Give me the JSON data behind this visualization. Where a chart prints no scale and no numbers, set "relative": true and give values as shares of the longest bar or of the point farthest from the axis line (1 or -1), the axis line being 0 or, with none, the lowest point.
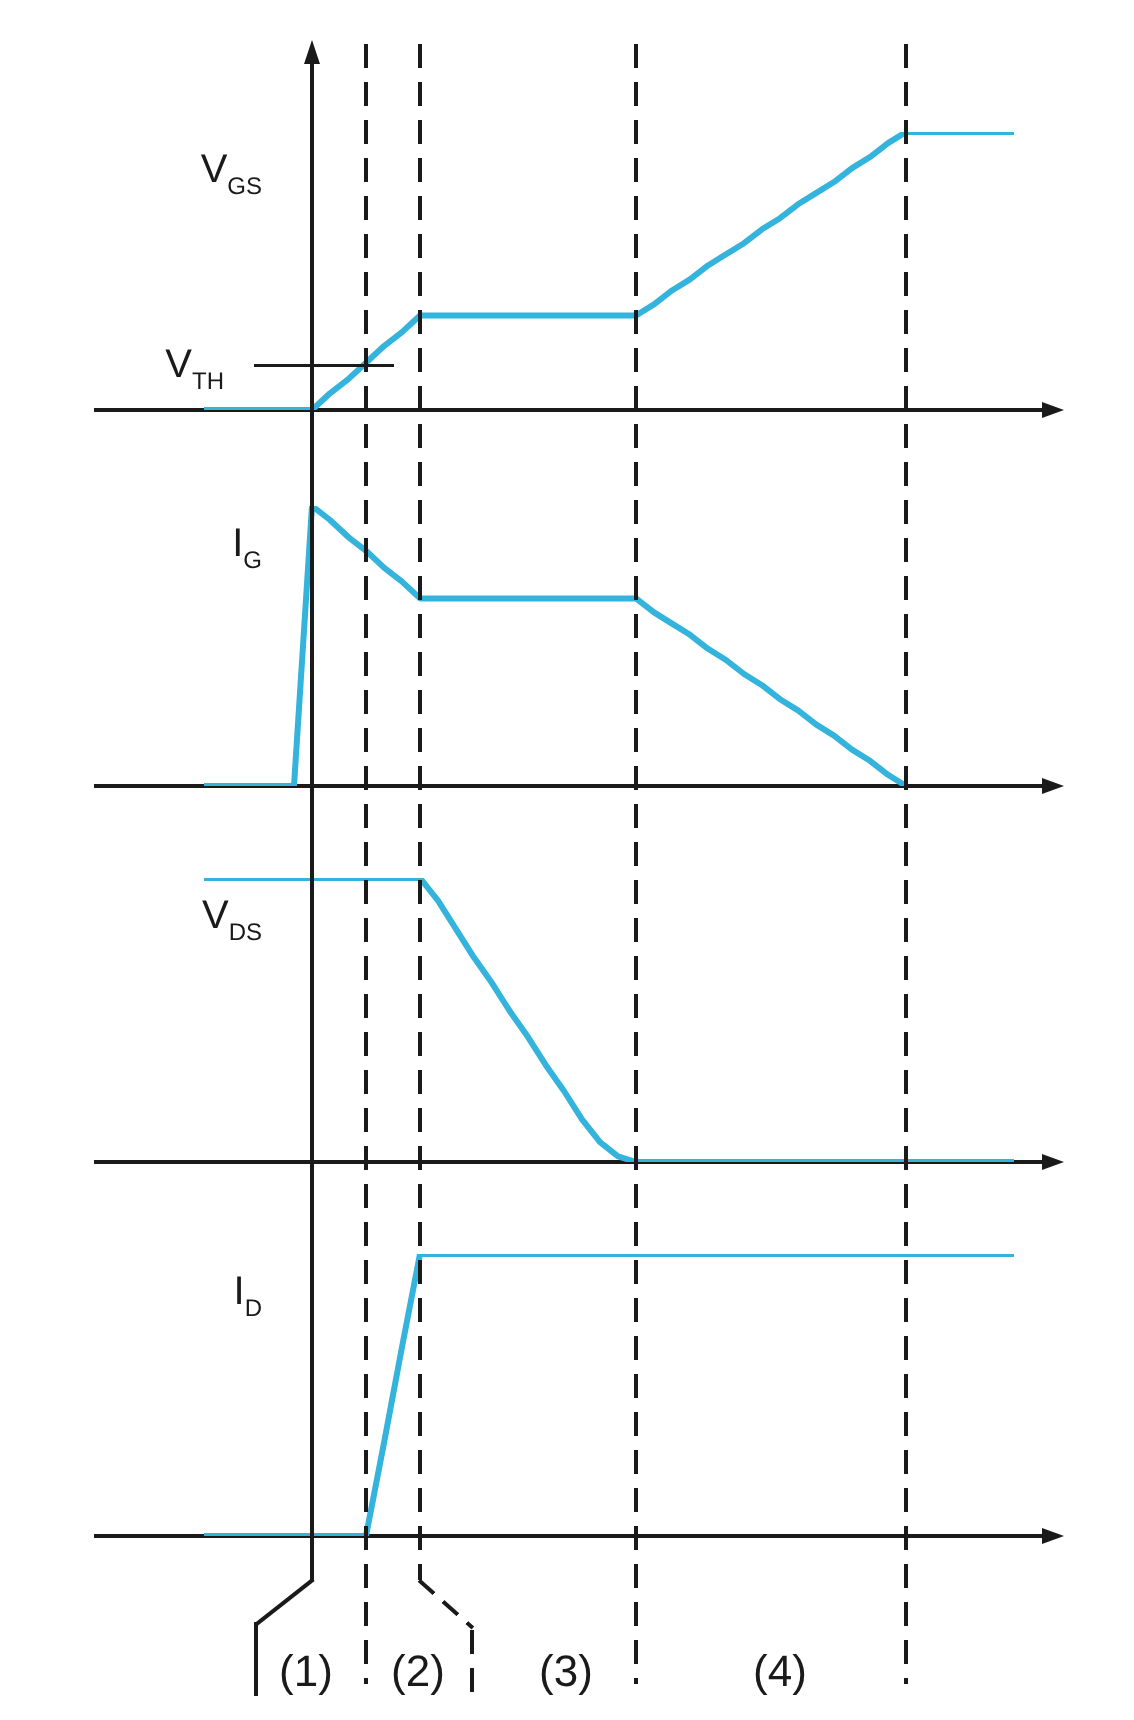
{
  "chart_data": [
    {
      "type": "line",
      "ylabel": "V$_{GS}$",
      "relative": true,
      "categories": [
        null,
        null,
        null,
        null,
        null,
        null,
        null,
        null,
        null,
        null,
        null,
        null,
        null,
        null,
        null,
        null,
        null,
        null,
        null,
        null,
        null,
        null,
        null,
        null,
        null,
        null,
        null,
        null,
        null,
        null,
        null,
        null,
        null,
        null,
        null,
        null,
        null,
        null,
        null,
        null,
        null,
        null,
        null,
        null,
        null,
        null,
        null,
        null,
        null,
        null,
        null,
        null,
        null,
        null
      ],
      "values": [
        null,
        null,
        null,
        null,
        null,
        null,
        0,
        0,
        0,
        0,
        0,
        0,
        0,
        0.06,
        0.11,
        0.17,
        0.23,
        0.28,
        0.34,
        0.34,
        0.34,
        0.34,
        0.34,
        0.34,
        0.34,
        0.34,
        0.34,
        0.34,
        0.34,
        0.34,
        0.34,
        0.38,
        0.43,
        0.47,
        0.52,
        0.56,
        0.6,
        0.65,
        0.69,
        0.74,
        0.78,
        0.82,
        0.87,
        0.91,
        0.96,
        1,
        1,
        1,
        1,
        1,
        1,
        1,
        null,
        null
      ],
      "color": "#34b4dc",
      "ref_lines": [
        {
          "axis": "y",
          "value": 0.16,
          "label": "V$_{TH}$",
          "color": "#1a1a1a"
        }
      ]
    },
    {
      "type": "line",
      "ylabel": "I$_{G}$",
      "relative": true,
      "categories": [
        null,
        null,
        null,
        null,
        null,
        null,
        null,
        null,
        null,
        null,
        null,
        null,
        null,
        null,
        null,
        null,
        null,
        null,
        null,
        null,
        null,
        null,
        null,
        null,
        null,
        null,
        null,
        null,
        null,
        null,
        null,
        null,
        null,
        null,
        null,
        null,
        null,
        null,
        null,
        null,
        null,
        null,
        null,
        null,
        null,
        null,
        null,
        null,
        null,
        null,
        null,
        null,
        null,
        null
      ],
      "values": [
        null,
        null,
        null,
        null,
        null,
        null,
        0,
        0,
        0,
        0,
        0,
        0,
        1,
        0.95,
        0.89,
        0.84,
        0.78,
        0.73,
        0.67,
        0.67,
        0.67,
        0.67,
        0.67,
        0.67,
        0.67,
        0.67,
        0.67,
        0.67,
        0.67,
        0.67,
        0.67,
        0.62,
        0.58,
        0.54,
        0.49,
        0.45,
        0.4,
        0.36,
        0.31,
        0.27,
        0.22,
        0.18,
        0.13,
        0.09,
        0.04,
        0,
        null,
        null,
        null,
        null,
        null,
        null,
        null,
        null
      ],
      "color": "#34b4dc"
    },
    {
      "type": "line",
      "ylabel": "V$_{DS}$",
      "relative": true,
      "categories": [
        null,
        null,
        null,
        null,
        null,
        null,
        null,
        null,
        null,
        null,
        null,
        null,
        null,
        null,
        null,
        null,
        null,
        null,
        null,
        null,
        null,
        null,
        null,
        null,
        null,
        null,
        null,
        null,
        null,
        null,
        null,
        null,
        null,
        null,
        null,
        null,
        null,
        null,
        null,
        null,
        null,
        null,
        null,
        null,
        null,
        null,
        null,
        null,
        null,
        null,
        null,
        null,
        null,
        null
      ],
      "values": [
        null,
        null,
        null,
        null,
        null,
        null,
        1,
        1,
        1,
        1,
        1,
        1,
        1,
        1,
        1,
        1,
        1,
        1,
        1,
        0.92,
        0.82,
        0.72,
        0.63,
        0.53,
        0.44,
        0.34,
        0.25,
        0.15,
        0.07,
        0.02,
        0,
        0,
        0,
        0,
        0,
        0,
        0,
        0,
        0,
        0,
        0,
        0,
        0,
        0,
        0,
        0,
        0,
        0,
        0,
        0,
        0,
        0,
        null,
        null
      ],
      "color": "#34b4dc"
    },
    {
      "type": "line",
      "ylabel": "I$_{D}$",
      "relative": true,
      "categories": [
        null,
        null,
        null,
        null,
        null,
        null,
        null,
        null,
        null,
        null,
        null,
        null,
        null,
        null,
        null,
        null,
        null,
        null,
        null,
        null,
        null,
        null,
        null,
        null,
        null,
        null,
        null,
        null,
        null,
        null,
        null,
        null,
        null,
        null,
        null,
        null,
        null,
        null,
        null,
        null,
        null,
        null,
        null,
        null,
        null,
        null,
        null,
        null,
        null,
        null,
        null,
        null,
        null,
        null
      ],
      "values": [
        null,
        null,
        null,
        null,
        null,
        null,
        0,
        0,
        0,
        0,
        0,
        0,
        0,
        0,
        0,
        0,
        0.33,
        0.67,
        1,
        1,
        1,
        1,
        1,
        1,
        1,
        1,
        1,
        1,
        1,
        1,
        1,
        1,
        1,
        1,
        1,
        1,
        1,
        1,
        1,
        1,
        1,
        1,
        1,
        1,
        1,
        1,
        1,
        1,
        1,
        1,
        1,
        1,
        null,
        null
      ],
      "color": "#34b4dc",
      "annotations": [
        "(1)",
        "(2)",
        "(3)",
        "(4)"
      ]
    }
  ]
}
